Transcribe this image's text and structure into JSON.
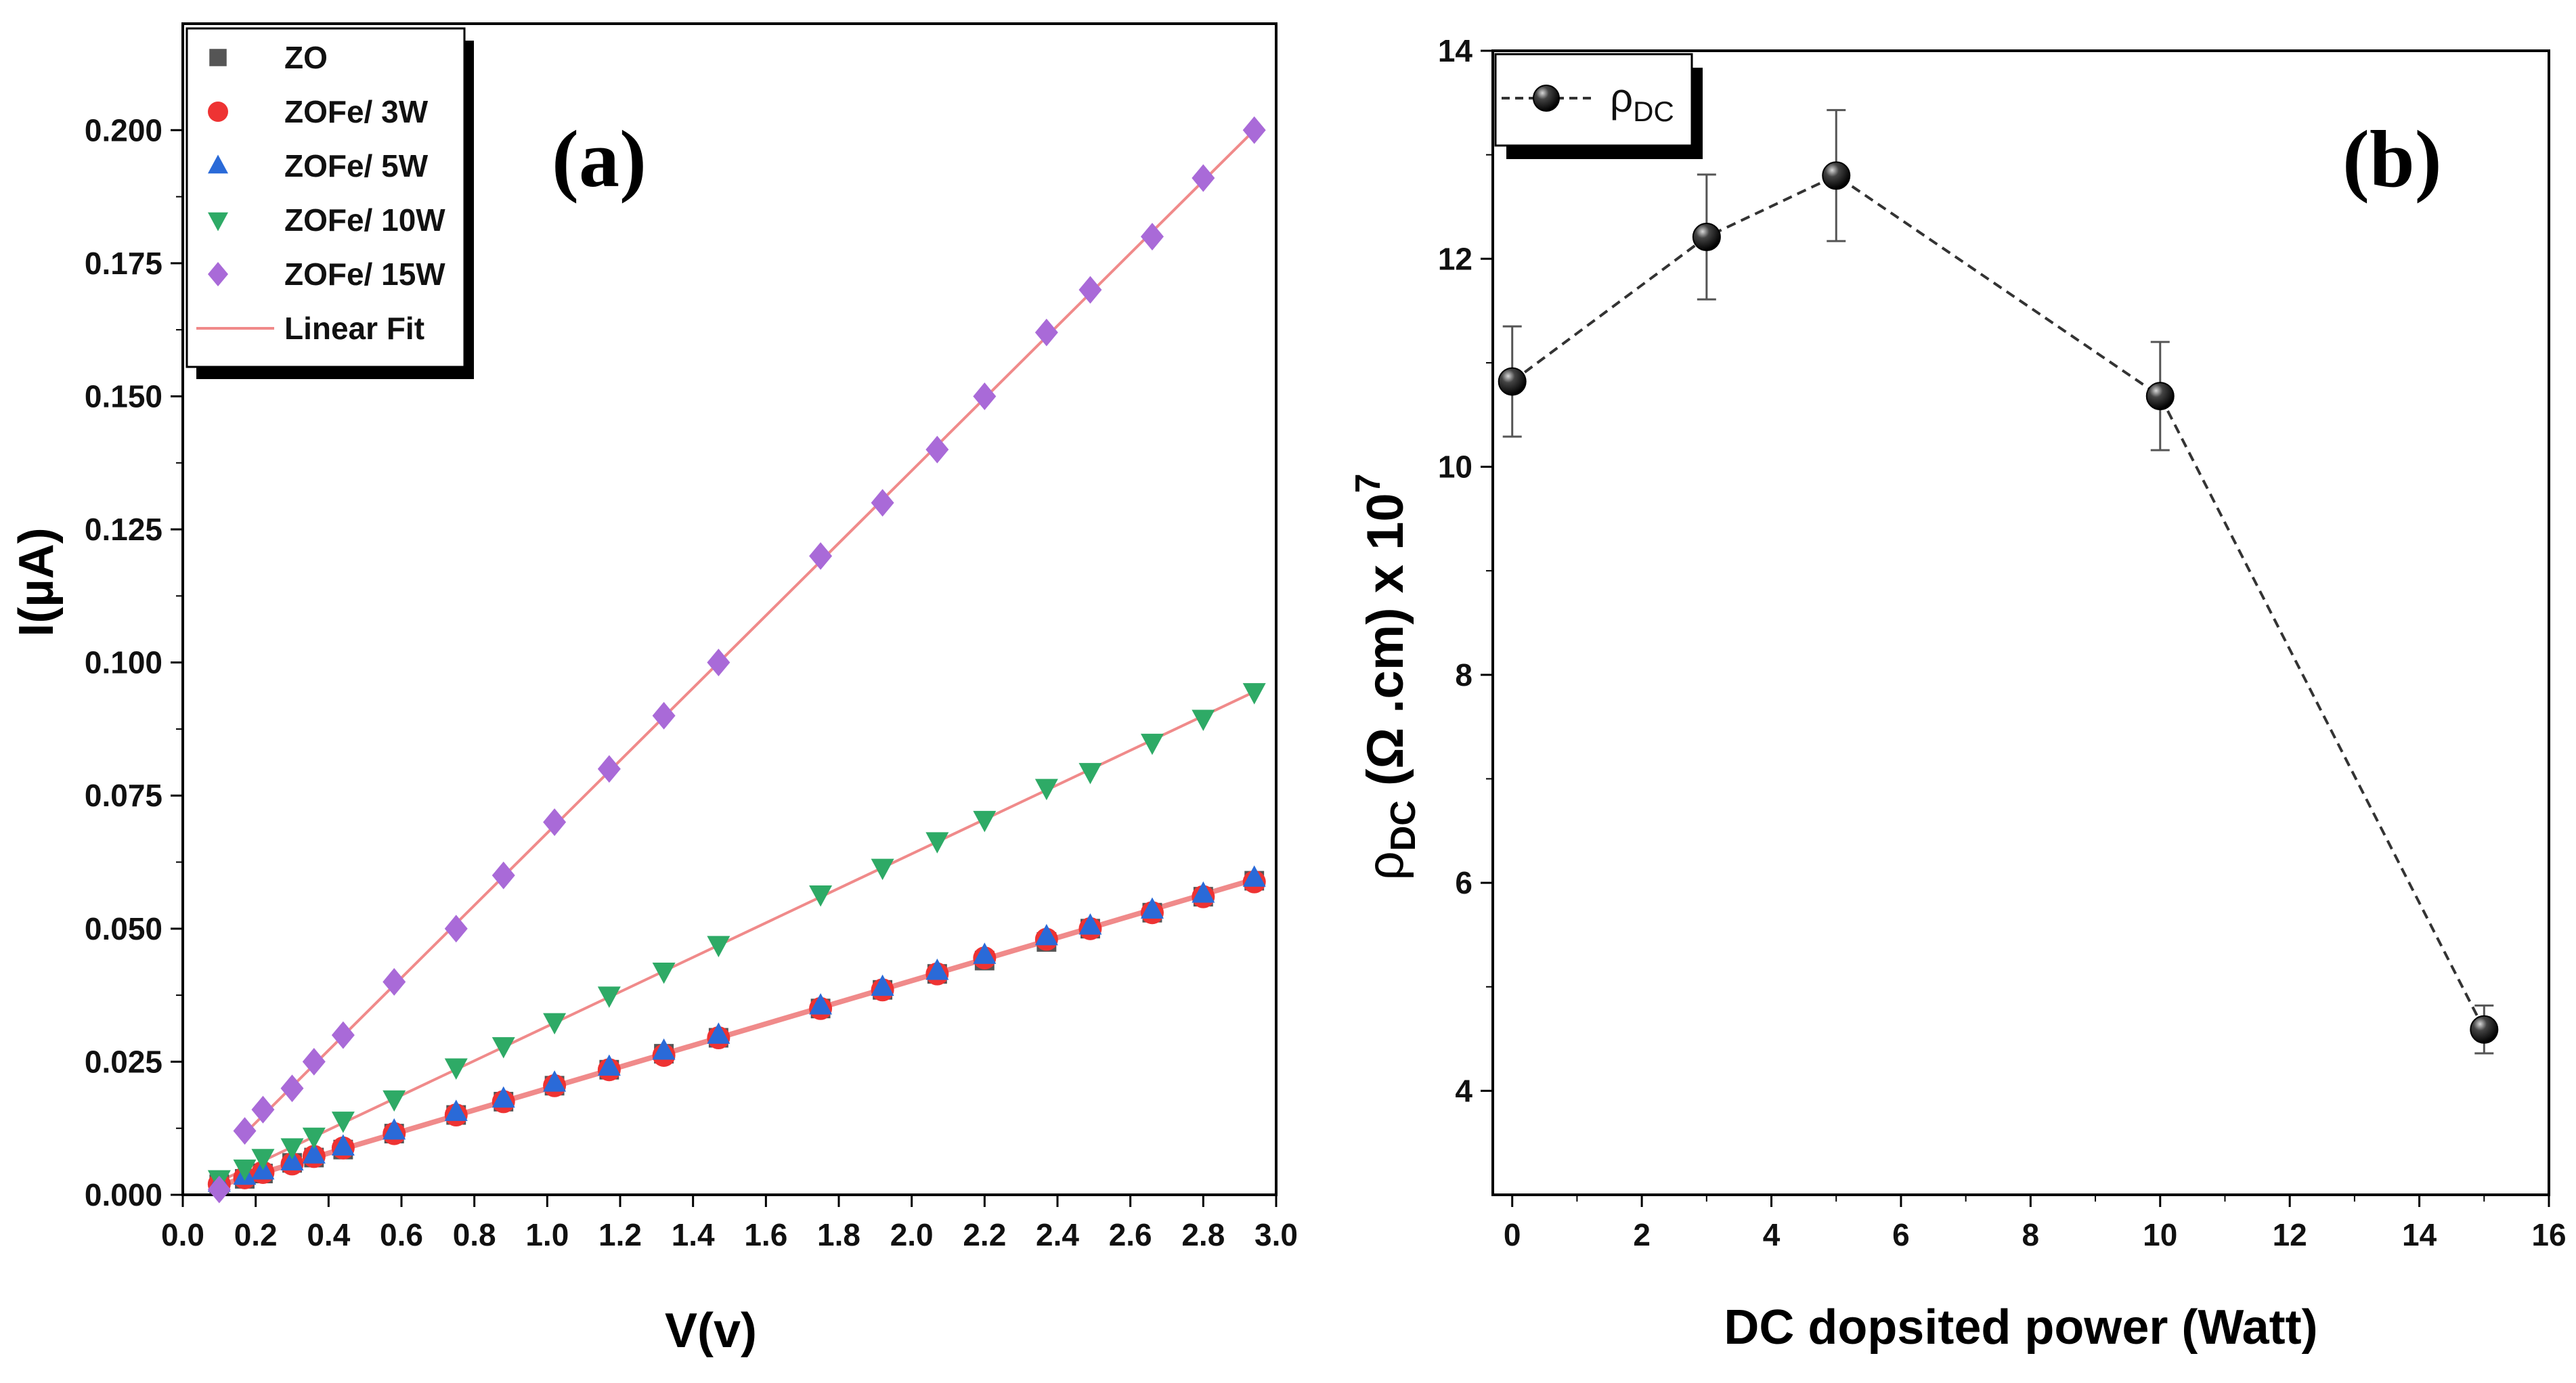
{
  "chart_data": [
    {
      "panel": "a",
      "type": "scatter",
      "panel_label": "(a)",
      "xlabel": "V(v)",
      "ylabel": "I(µA)",
      "xlim": [
        0.0,
        3.0
      ],
      "ylim": [
        0.0,
        0.22
      ],
      "xticks": [
        "0.0",
        "0.2",
        "0.4",
        "0.6",
        "0.8",
        "1.0",
        "1.2",
        "1.4",
        "1.6",
        "1.8",
        "2.0",
        "2.2",
        "2.4",
        "2.6",
        "2.8",
        "3.0"
      ],
      "yticks": [
        "0.000",
        "0.025",
        "0.050",
        "0.075",
        "0.100",
        "0.125",
        "0.150",
        "0.175",
        "0.200"
      ],
      "x": [
        0.1,
        0.17,
        0.22,
        0.3,
        0.36,
        0.44,
        0.58,
        0.75,
        0.88,
        1.02,
        1.17,
        1.32,
        1.47,
        1.75,
        1.92,
        2.07,
        2.2,
        2.37,
        2.49,
        2.66,
        2.8,
        2.94
      ],
      "series": [
        {
          "name": "ZO",
          "marker": "square",
          "color": "#555555",
          "values": [
            0.002,
            0.003,
            0.004,
            0.006,
            0.007,
            0.0085,
            0.0115,
            0.015,
            0.0175,
            0.0205,
            0.0235,
            0.0265,
            0.0295,
            0.035,
            0.0385,
            0.0415,
            0.044,
            0.0475,
            0.05,
            0.053,
            0.056,
            0.059
          ]
        },
        {
          "name": "ZOFe/ 3W",
          "marker": "circle",
          "color": "#ee3333",
          "values": [
            0.002,
            0.0032,
            0.0042,
            0.0058,
            0.0072,
            0.0088,
            0.0115,
            0.015,
            0.0175,
            0.0205,
            0.0235,
            0.0262,
            0.0295,
            0.035,
            0.0385,
            0.0415,
            0.0445,
            0.048,
            0.05,
            0.053,
            0.056,
            0.0588
          ]
        },
        {
          "name": "ZOFe/ 5W",
          "marker": "triangle-up",
          "color": "#2a6ad8",
          "values": [
            0.0022,
            0.0035,
            0.0045,
            0.0062,
            0.0075,
            0.009,
            0.012,
            0.0155,
            0.018,
            0.021,
            0.024,
            0.027,
            0.03,
            0.0355,
            0.039,
            0.042,
            0.045,
            0.0485,
            0.0505,
            0.0535,
            0.0565,
            0.0595
          ]
        },
        {
          "name": "ZOFe/ 10W",
          "marker": "triangle-down",
          "color": "#2eaa66",
          "values": [
            0.003,
            0.005,
            0.007,
            0.009,
            0.011,
            0.014,
            0.018,
            0.024,
            0.028,
            0.0325,
            0.0375,
            0.042,
            0.047,
            0.0565,
            0.0615,
            0.0665,
            0.0705,
            0.0765,
            0.0795,
            0.085,
            0.0895,
            0.0945
          ]
        },
        {
          "name": "ZOFe/ 15W",
          "marker": "diamond",
          "color": "#a96ad8",
          "values": [
            0.001,
            0.012,
            0.016,
            0.02,
            0.025,
            0.03,
            0.04,
            0.05,
            0.06,
            0.07,
            0.08,
            0.09,
            0.1,
            0.12,
            0.13,
            0.14,
            0.15,
            0.162,
            0.17,
            0.18,
            0.191,
            0.2
          ]
        }
      ],
      "fit_label": "Linear Fit",
      "fit_color": "#f08a8a",
      "fit_lines": [
        {
          "x": [
            0.1,
            2.94
          ],
          "y": [
            0.0015,
            0.059
          ]
        },
        {
          "x": [
            0.1,
            2.94
          ],
          "y": [
            0.002,
            0.0595
          ]
        },
        {
          "x": [
            0.1,
            2.94
          ],
          "y": [
            0.0025,
            0.0945
          ]
        },
        {
          "x": [
            0.17,
            2.94
          ],
          "y": [
            0.0115,
            0.2
          ]
        }
      ],
      "legend_position": "top-left"
    },
    {
      "panel": "b",
      "type": "line",
      "panel_label": "(b)",
      "xlabel": "DC dopsited power (Watt)",
      "ylabel_main": "ρ",
      "ylabel_sub": "DC",
      "ylabel_rest": " (Ω .cm) x 10",
      "ylabel_sup": "7",
      "xlim": [
        -0.3,
        16.0
      ],
      "ylim": [
        3.0,
        14.0
      ],
      "xticks": [
        "0",
        "2",
        "4",
        "6",
        "8",
        "10",
        "12",
        "14",
        "16"
      ],
      "yticks": [
        "4",
        "6",
        "8",
        "10",
        "12",
        "14"
      ],
      "series": [
        {
          "name": "ρ",
          "name_sub": "DC",
          "line_style": "dashed",
          "color": "#333333",
          "x": [
            0,
            3,
            5,
            10,
            15
          ],
          "values": [
            10.82,
            12.21,
            12.8,
            10.68,
            4.59
          ],
          "errors": [
            0.53,
            0.6,
            0.63,
            0.52,
            0.23
          ]
        }
      ],
      "legend_position": "top-left"
    }
  ]
}
